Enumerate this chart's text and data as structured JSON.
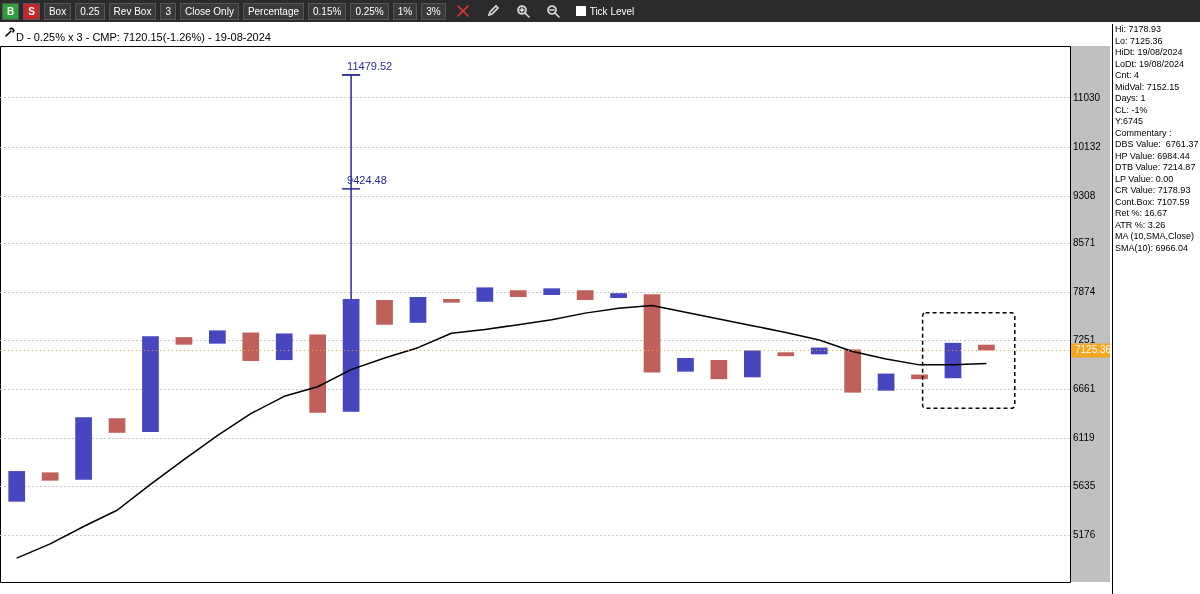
{
  "chart_data": [
    {
      "type": "bar",
      "title": "D - 0.25% x 3 - CMP: 7120.15(-1.26%) - 19-08-2024",
      "categories": [
        null,
        null,
        null,
        null,
        null,
        null,
        null,
        null,
        null,
        null,
        null,
        null,
        null,
        null,
        null,
        null,
        null,
        null,
        null,
        null,
        null,
        null,
        null,
        null,
        null,
        null,
        null,
        null,
        null,
        null,
        null,
        null
      ],
      "series": [
        {
          "type": "bar",
          "base": [
            5485,
            5688,
            5697,
            6179,
            6189,
            7197,
            7210,
            6997,
            7008,
            6398,
            6409,
            7450,
            7475,
            7740,
            7752,
            7816,
            7843,
            7776,
            7803,
            6858,
            6869,
            6780,
            6802,
            7055,
            7078,
            6624,
            6646,
            6780,
            6791,
            7126,
            null,
            null
          ],
          "values": [
            298,
            82,
            650,
            158,
            1115,
            95,
            167,
            353,
            330,
            928,
            1380,
            326,
            341,
            49,
            195,
            92,
            91,
            132,
            65,
            997,
            164,
            229,
            324,
            48,
            83,
            514,
            200,
            55,
            429,
            71,
            null,
            null
          ],
          "colors": [
            "#4646c0",
            "#c0605a",
            "#4646c0",
            "#c0605a",
            "#4646c0",
            "#c0605a",
            "#4646c0",
            "#c0605a",
            "#4646c0",
            "#c0605a",
            "#4646c0",
            "#c0605a",
            "#4646c0",
            "#c0605a",
            "#4646c0",
            "#c0605a",
            "#4646c0",
            "#c0605a",
            "#4646c0",
            "#c0605a",
            "#4646c0",
            "#c0605a",
            "#4646c0",
            "#c0605a",
            "#4646c0",
            "#c0605a",
            "#4646c0",
            "#c0605a",
            "#4646c0",
            "#c0605a",
            "#4646c0",
            "#c0605a"
          ],
          "errors": [
            null,
            null,
            null,
            null,
            null,
            null,
            null,
            null,
            null,
            null,
            [
              7789,
              11479.52
            ],
            null,
            null,
            null,
            null,
            null,
            null,
            null,
            null,
            null,
            null,
            null,
            null,
            null,
            null,
            null,
            null,
            null,
            null,
            null,
            null,
            null
          ]
        },
        {
          "type": "line",
          "color": "#000000",
          "marker": "none",
          "values": [
            4974,
            5099,
            5254,
            5404,
            5651,
            5899,
            6150,
            6387,
            6582,
            6692,
            6893,
            7033,
            7160,
            7341,
            7390,
            7450,
            7513,
            7601,
            7665,
            7703,
            7613,
            7525,
            7438,
            7350,
            7256,
            7113,
            7020,
            6950,
            6950,
            6966,
            null,
            null
          ]
        }
      ],
      "ylim": [
        4773,
        12068
      ],
      "yticks": [
        5176,
        5635,
        6119,
        6661,
        7251,
        7874,
        8571,
        9308,
        10132,
        11030
      ],
      "log": "y",
      "grid": "y",
      "tick_labels": "y",
      "ref_lines": [
        {
          "axis": "y",
          "value": 7125.36,
          "label": "7125.36",
          "color": "#f5a623"
        }
      ],
      "annotations": [
        "11479.52",
        "9424.48"
      ]
    },
    {
      "type": "other",
      "annotations": [
        "Hi: 7178.93",
        "Lo: 7125.36",
        "HiDt: 19/08/2024",
        "LoDt: 19/08/2024",
        "Cnt: 4",
        "MidVal: 7152.15",
        "Days: 1",
        "CL: -1%",
        "Y:6745",
        "Commentary :",
        "DBS Value:  6761.37",
        "HP Value: 6984.44",
        "DTB Value: 7214.87",
        "LP Value: 0.00",
        "CR Value: 7178.93",
        "Cont.Box: 7107.59",
        "Ret %: 16.67",
        "ATR %: 3.26",
        "MA (10,SMA,Close)",
        "SMA(10): 6966.04"
      ]
    },
    {
      "type": "other",
      "annotations": [
        "B",
        "S",
        "Box",
        "0.25",
        "Rev Box",
        "3",
        "Close Only",
        "Percentage",
        "0.15%",
        "0.25%",
        "1%",
        "3%",
        "Tick Level"
      ]
    }
  ]
}
